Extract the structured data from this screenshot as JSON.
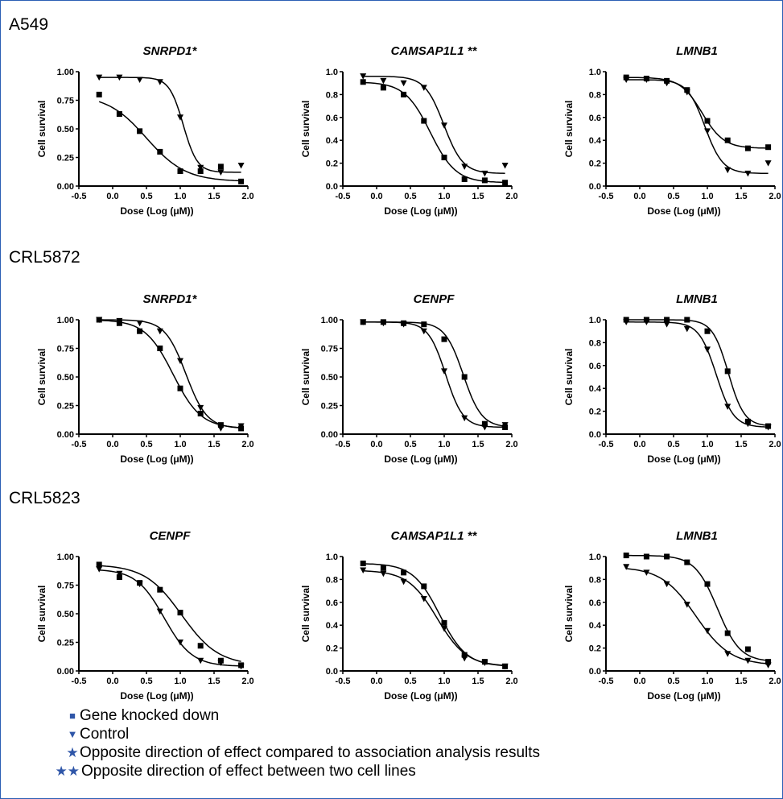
{
  "row_labels": [
    "A549",
    "CRL5872",
    "CRL5823"
  ],
  "legend": {
    "knockdown_label": "Gene knocked down",
    "control_label": "Control",
    "star_note": "Opposite direction of effect compared to association analysis results",
    "double_star_note": "Opposite direction of effect between two cell lines",
    "symbol_color": "#2f56a8"
  },
  "chart_data": [
    {
      "type": "line",
      "cell_line": "A549",
      "title": "SNRPD1*",
      "xlabel": "Dose (Log (μM))",
      "ylabel": "Cell survival",
      "ylim": [
        0,
        1
      ],
      "yticks": [
        "0.00",
        "0.25",
        "0.50",
        "0.75",
        "1.00"
      ],
      "xlim": [
        -0.5,
        2.0
      ],
      "xticks": [
        "-0.5",
        "0.0",
        "0.5",
        "1.0",
        "1.5",
        "2.0"
      ],
      "x": [
        -0.2,
        0.1,
        0.4,
        0.7,
        1.0,
        1.3,
        1.6,
        1.9
      ],
      "series": [
        {
          "marker": "square",
          "values": [
            0.8,
            0.63,
            0.48,
            0.3,
            0.13,
            0.13,
            0.17,
            0.04
          ]
        },
        {
          "marker": "triangle",
          "values": [
            0.95,
            0.95,
            0.93,
            0.91,
            0.6,
            0.16,
            0.12,
            0.18
          ]
        }
      ]
    },
    {
      "type": "line",
      "cell_line": "A549",
      "title": "CAMSAP1L1 **",
      "xlabel": "Dose (Log (μM))",
      "ylabel": "Cell survival",
      "ylim": [
        0,
        1.0
      ],
      "yticks": [
        "0.0",
        "0.2",
        "0.4",
        "0.6",
        "0.8",
        "1.0"
      ],
      "xlim": [
        -0.5,
        2.0
      ],
      "xticks": [
        "-0.5",
        "0.0",
        "0.5",
        "1.0",
        "1.5",
        "2.0"
      ],
      "x": [
        -0.2,
        0.1,
        0.4,
        0.7,
        1.0,
        1.3,
        1.6,
        1.9
      ],
      "series": [
        {
          "marker": "square",
          "values": [
            0.91,
            0.86,
            0.8,
            0.57,
            0.25,
            0.06,
            0.05,
            0.03
          ]
        },
        {
          "marker": "triangle",
          "values": [
            0.96,
            0.92,
            0.9,
            0.86,
            0.53,
            0.17,
            0.11,
            0.18
          ]
        }
      ]
    },
    {
      "type": "line",
      "cell_line": "A549",
      "title": "LMNB1",
      "xlabel": "Dose (Log (μM))",
      "ylabel": "Cell survival",
      "ylim": [
        0,
        1.0
      ],
      "yticks": [
        "0.0",
        "0.2",
        "0.4",
        "0.6",
        "0.8",
        "1.0"
      ],
      "xlim": [
        -0.5,
        2.0
      ],
      "xticks": [
        "-0.5",
        "0.0",
        "0.5",
        "1.0",
        "1.5",
        "2.0"
      ],
      "x": [
        -0.2,
        0.1,
        0.4,
        0.7,
        1.0,
        1.3,
        1.6,
        1.9
      ],
      "series": [
        {
          "marker": "square",
          "values": [
            0.95,
            0.94,
            0.92,
            0.84,
            0.57,
            0.4,
            0.33,
            0.34
          ]
        },
        {
          "marker": "triangle",
          "values": [
            0.93,
            0.93,
            0.9,
            0.82,
            0.48,
            0.14,
            0.11,
            0.2
          ]
        }
      ]
    },
    {
      "type": "line",
      "cell_line": "CRL5872",
      "title": "SNRPD1*",
      "xlabel": "Dose (Log (μM))",
      "ylabel": "Cell survival",
      "ylim": [
        0,
        1
      ],
      "yticks": [
        "0.00",
        "0.25",
        "0.50",
        "0.75",
        "1.00"
      ],
      "xlim": [
        -0.5,
        2.0
      ],
      "xticks": [
        "-0.5",
        "0.0",
        "0.5",
        "1.0",
        "1.5",
        "2.0"
      ],
      "x": [
        -0.2,
        0.1,
        0.4,
        0.7,
        1.0,
        1.3,
        1.6,
        1.9
      ],
      "series": [
        {
          "marker": "square",
          "values": [
            1.0,
            0.97,
            0.9,
            0.75,
            0.4,
            0.18,
            0.08,
            0.05
          ]
        },
        {
          "marker": "triangle",
          "values": [
            1.0,
            0.99,
            0.97,
            0.9,
            0.64,
            0.23,
            0.05,
            0.07
          ]
        }
      ]
    },
    {
      "type": "line",
      "cell_line": "CRL5872",
      "title": "CENPF",
      "xlabel": "Dose (Log (μM))",
      "ylabel": "Cell survival",
      "ylim": [
        0,
        1
      ],
      "yticks": [
        "0.00",
        "0.25",
        "0.50",
        "0.75",
        "1.00"
      ],
      "xlim": [
        -0.5,
        2.0
      ],
      "xticks": [
        "-0.5",
        "0.0",
        "0.5",
        "1.0",
        "1.5",
        "2.0"
      ],
      "x": [
        -0.2,
        0.1,
        0.4,
        0.7,
        1.0,
        1.3,
        1.6,
        1.9
      ],
      "series": [
        {
          "marker": "square",
          "values": [
            0.98,
            0.98,
            0.97,
            0.96,
            0.83,
            0.5,
            0.09,
            0.06
          ]
        },
        {
          "marker": "triangle",
          "values": [
            0.98,
            0.97,
            0.96,
            0.9,
            0.55,
            0.14,
            0.06,
            0.08
          ]
        }
      ]
    },
    {
      "type": "line",
      "cell_line": "CRL5872",
      "title": "LMNB1",
      "xlabel": "Dose (Log (μM))",
      "ylabel": "Cell survival",
      "ylim": [
        0,
        1.0
      ],
      "yticks": [
        "0.0",
        "0.2",
        "0.4",
        "0.6",
        "0.8",
        "1.0"
      ],
      "xlim": [
        -0.5,
        2.0
      ],
      "xticks": [
        "-0.5",
        "0.0",
        "0.5",
        "1.0",
        "1.5",
        "2.0"
      ],
      "x": [
        -0.2,
        0.1,
        0.4,
        0.7,
        1.0,
        1.3,
        1.6,
        1.9
      ],
      "series": [
        {
          "marker": "square",
          "values": [
            1.0,
            1.0,
            1.0,
            1.0,
            0.9,
            0.55,
            0.11,
            0.07
          ]
        },
        {
          "marker": "triangle",
          "values": [
            0.98,
            0.98,
            0.96,
            0.92,
            0.74,
            0.24,
            0.09,
            0.06
          ]
        }
      ]
    },
    {
      "type": "line",
      "cell_line": "CRL5823",
      "title": "CENPF",
      "xlabel": "Dose (Log (μM))",
      "ylabel": "Cell survival",
      "ylim": [
        0,
        1
      ],
      "yticks": [
        "0.00",
        "0.25",
        "0.50",
        "0.75",
        "1.00"
      ],
      "xlim": [
        -0.5,
        2.0
      ],
      "xticks": [
        "-0.5",
        "0.0",
        "0.5",
        "1.0",
        "1.5",
        "2.0"
      ],
      "x": [
        -0.2,
        0.1,
        0.4,
        0.7,
        1.0,
        1.3,
        1.6,
        1.9
      ],
      "series": [
        {
          "marker": "square",
          "values": [
            0.93,
            0.82,
            0.77,
            0.71,
            0.51,
            0.22,
            0.09,
            0.05
          ]
        },
        {
          "marker": "triangle",
          "values": [
            0.89,
            0.85,
            0.76,
            0.52,
            0.25,
            0.09,
            0.07,
            0.04
          ]
        }
      ]
    },
    {
      "type": "line",
      "cell_line": "CRL5823",
      "title": "CAMSAP1L1 **",
      "xlabel": "Dose (Log (μM))",
      "ylabel": "Cell survival",
      "ylim": [
        0,
        1.0
      ],
      "yticks": [
        "0.0",
        "0.2",
        "0.4",
        "0.6",
        "0.8",
        "1.0"
      ],
      "xlim": [
        -0.5,
        2.0
      ],
      "xticks": [
        "-0.5",
        "0.0",
        "0.5",
        "1.0",
        "1.5",
        "2.0"
      ],
      "x": [
        -0.2,
        0.1,
        0.4,
        0.7,
        1.0,
        1.3,
        1.6,
        1.9
      ],
      "series": [
        {
          "marker": "square",
          "values": [
            0.94,
            0.9,
            0.86,
            0.74,
            0.42,
            0.14,
            0.08,
            0.04
          ]
        },
        {
          "marker": "triangle",
          "values": [
            0.88,
            0.85,
            0.78,
            0.63,
            0.37,
            0.11,
            0.07,
            0.04
          ]
        }
      ]
    },
    {
      "type": "line",
      "cell_line": "CRL5823",
      "title": "LMNB1",
      "xlabel": "Dose (Log (μM))",
      "ylabel": "Cell survival",
      "ylim": [
        0,
        1.0
      ],
      "yticks": [
        "0.0",
        "0.2",
        "0.4",
        "0.6",
        "0.8",
        "1.0"
      ],
      "xlim": [
        -0.5,
        2.0
      ],
      "xticks": [
        "-0.5",
        "0.0",
        "0.5",
        "1.0",
        "1.5",
        "2.0"
      ],
      "x": [
        -0.2,
        0.1,
        0.4,
        0.7,
        1.0,
        1.3,
        1.6,
        1.9
      ],
      "series": [
        {
          "marker": "square",
          "values": [
            1.01,
            1.0,
            1.0,
            0.95,
            0.76,
            0.33,
            0.19,
            0.08
          ]
        },
        {
          "marker": "triangle",
          "values": [
            0.91,
            0.86,
            0.76,
            0.58,
            0.35,
            0.15,
            0.09,
            0.05
          ]
        }
      ]
    }
  ]
}
